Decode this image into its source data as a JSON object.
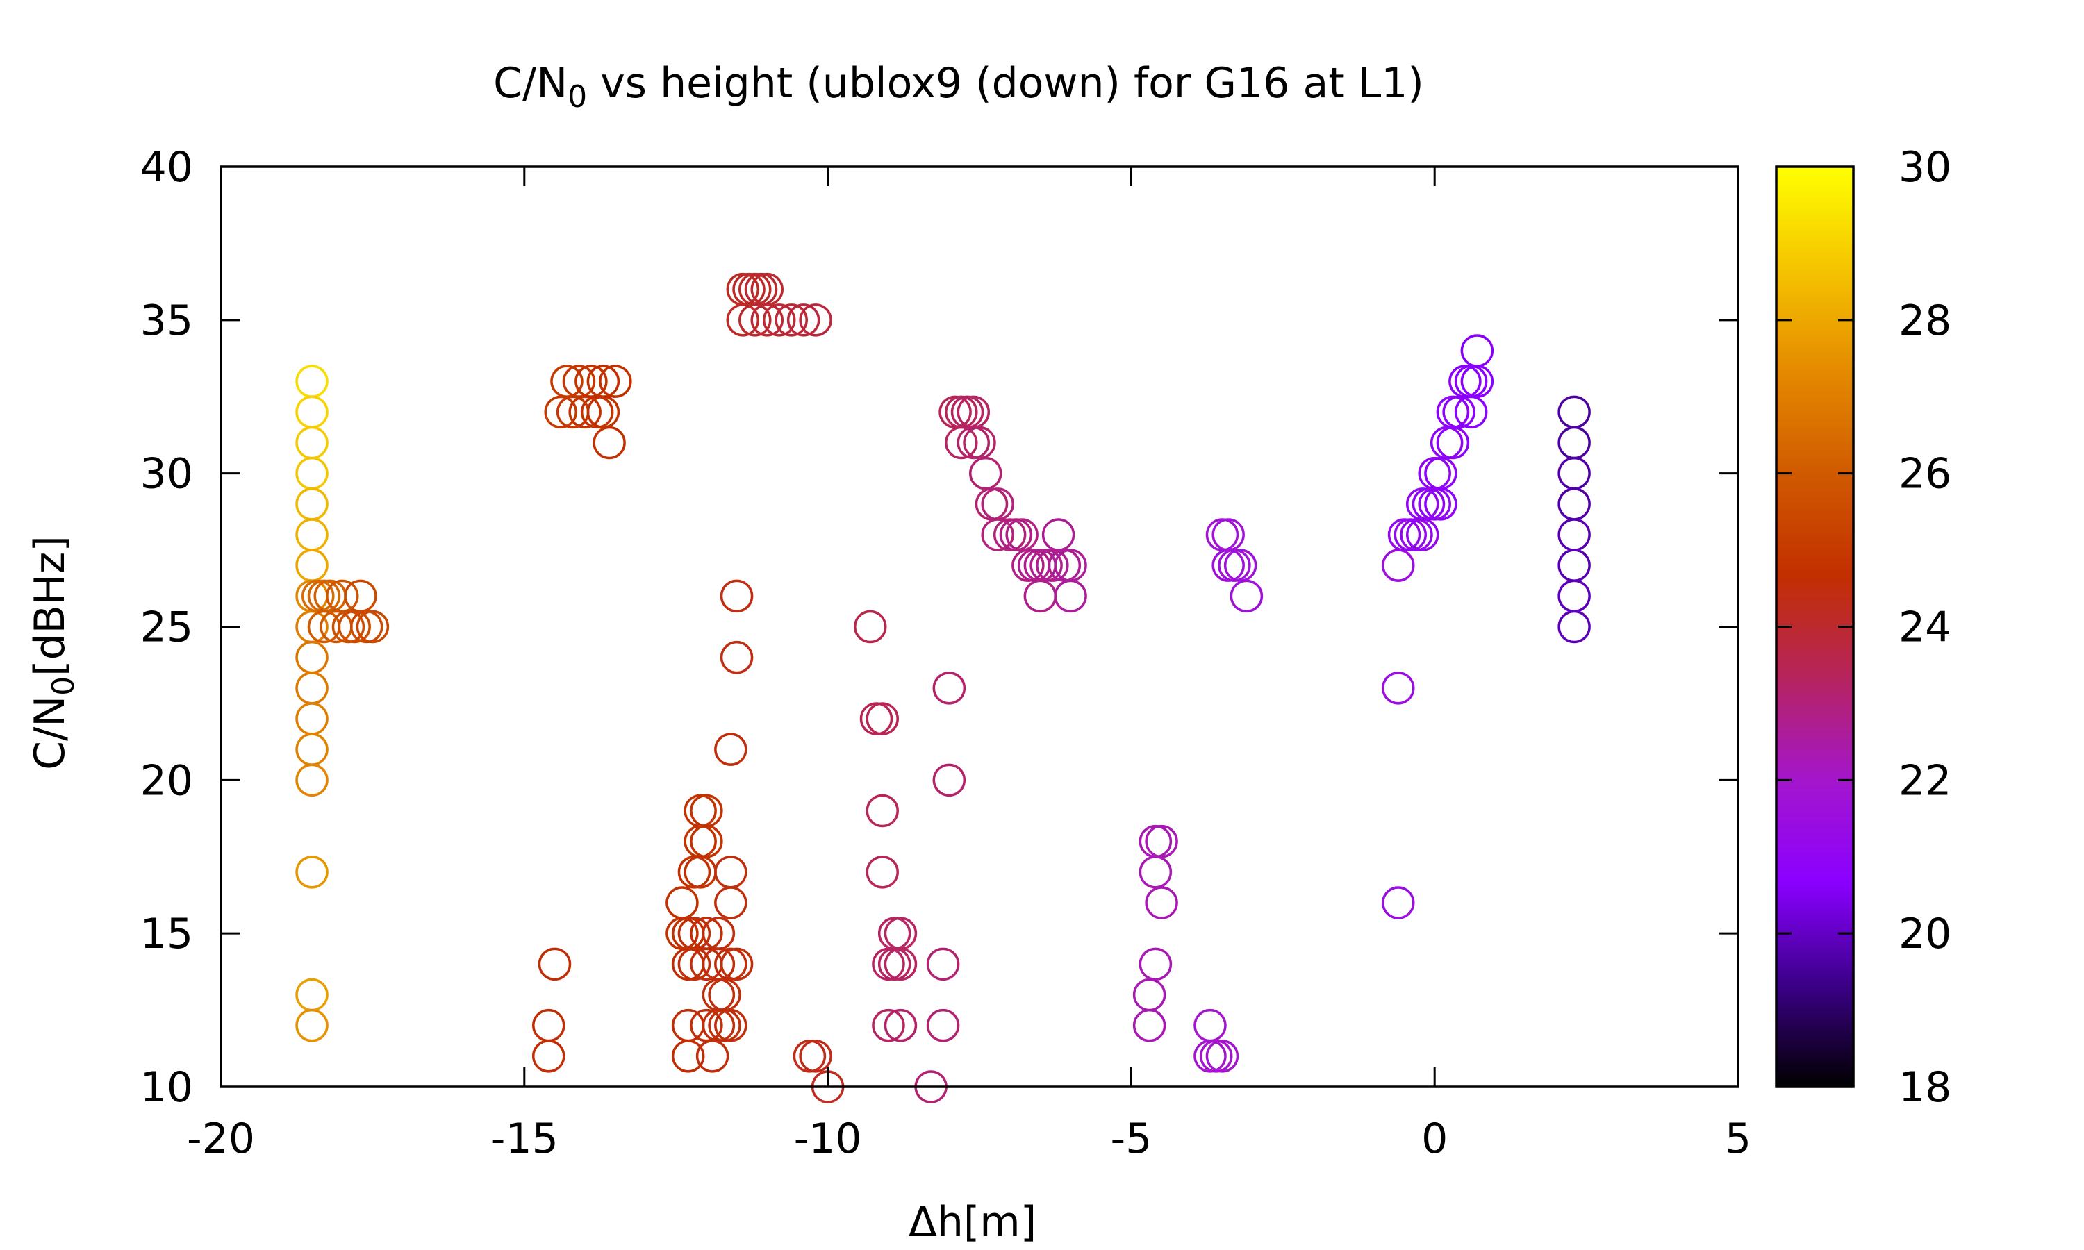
{
  "chart_data": {
    "type": "scatter",
    "title_main": "C/N",
    "title_sub": "0",
    "title_rest": " vs height (ublox9 (down) for G16 at L1)",
    "xlabel": "Δh[m]",
    "ylabel_main": "C/N",
    "ylabel_sub": "0",
    "ylabel_rest": "[dBHz]",
    "xlim": [
      -20,
      5
    ],
    "ylim": [
      10,
      40
    ],
    "xticks": [
      -20,
      -15,
      -10,
      -5,
      0,
      5
    ],
    "yticks": [
      10,
      15,
      20,
      25,
      30,
      35,
      40
    ],
    "colorbar": {
      "range": [
        18,
        30
      ],
      "ticks": [
        18,
        20,
        22,
        24,
        26,
        28,
        30
      ],
      "palette": [
        "#000000",
        "#3b0088",
        "#8a00ff",
        "#a416cc",
        "#b6245e",
        "#c22f00",
        "#d05a00",
        "#e58a00",
        "#f5c400",
        "#ffff00"
      ]
    },
    "marker": "open-circle",
    "grid": false,
    "points": [
      {
        "x": -18.5,
        "y": 33,
        "c": 29.2
      },
      {
        "x": -18.5,
        "y": 32,
        "c": 29.0
      },
      {
        "x": -18.5,
        "y": 31,
        "c": 28.8
      },
      {
        "x": -18.5,
        "y": 30,
        "c": 28.7
      },
      {
        "x": -18.5,
        "y": 29,
        "c": 28.4
      },
      {
        "x": -18.5,
        "y": 28,
        "c": 28.2
      },
      {
        "x": -18.5,
        "y": 27,
        "c": 28.0
      },
      {
        "x": -18.5,
        "y": 26,
        "c": 27.3
      },
      {
        "x": -18.5,
        "y": 25,
        "c": 27.0
      },
      {
        "x": -18.5,
        "y": 24,
        "c": 26.8
      },
      {
        "x": -18.5,
        "y": 23,
        "c": 26.9
      },
      {
        "x": -18.5,
        "y": 22,
        "c": 27.0
      },
      {
        "x": -18.5,
        "y": 21,
        "c": 27.1
      },
      {
        "x": -18.5,
        "y": 20,
        "c": 27.2
      },
      {
        "x": -18.5,
        "y": 17,
        "c": 27.6
      },
      {
        "x": -18.5,
        "y": 13,
        "c": 27.8
      },
      {
        "x": -18.5,
        "y": 12,
        "c": 27.5
      },
      {
        "x": -18.4,
        "y": 26,
        "c": 26.5
      },
      {
        "x": -18.3,
        "y": 26,
        "c": 26.3
      },
      {
        "x": -18.2,
        "y": 26,
        "c": 26.2
      },
      {
        "x": -18.3,
        "y": 25,
        "c": 26.0
      },
      {
        "x": -18.1,
        "y": 25,
        "c": 25.9
      },
      {
        "x": -18.0,
        "y": 26,
        "c": 25.8
      },
      {
        "x": -17.9,
        "y": 25,
        "c": 25.7
      },
      {
        "x": -17.8,
        "y": 25,
        "c": 25.6
      },
      {
        "x": -17.7,
        "y": 26,
        "c": 25.5
      },
      {
        "x": -17.6,
        "y": 25,
        "c": 25.5
      },
      {
        "x": -17.5,
        "y": 25,
        "c": 25.4
      },
      {
        "x": -14.4,
        "y": 32,
        "c": 25.0
      },
      {
        "x": -14.3,
        "y": 33,
        "c": 25.0
      },
      {
        "x": -14.2,
        "y": 32,
        "c": 24.9
      },
      {
        "x": -14.1,
        "y": 33,
        "c": 24.9
      },
      {
        "x": -14.0,
        "y": 32,
        "c": 24.8
      },
      {
        "x": -13.9,
        "y": 33,
        "c": 24.8
      },
      {
        "x": -13.8,
        "y": 32,
        "c": 24.8
      },
      {
        "x": -13.7,
        "y": 33,
        "c": 24.7
      },
      {
        "x": -13.6,
        "y": 31,
        "c": 24.7
      },
      {
        "x": -13.5,
        "y": 33,
        "c": 24.7
      },
      {
        "x": -13.7,
        "y": 32,
        "c": 24.7
      },
      {
        "x": -14.5,
        "y": 14,
        "c": 24.6
      },
      {
        "x": -14.6,
        "y": 12,
        "c": 24.6
      },
      {
        "x": -14.6,
        "y": 11,
        "c": 24.6
      },
      {
        "x": -11.4,
        "y": 36,
        "c": 24.2
      },
      {
        "x": -11.3,
        "y": 36,
        "c": 24.1
      },
      {
        "x": -11.2,
        "y": 36,
        "c": 24.1
      },
      {
        "x": -11.1,
        "y": 36,
        "c": 24.0
      },
      {
        "x": -11.0,
        "y": 36,
        "c": 24.0
      },
      {
        "x": -11.4,
        "y": 35,
        "c": 24.1
      },
      {
        "x": -11.2,
        "y": 35,
        "c": 24.0
      },
      {
        "x": -11.0,
        "y": 35,
        "c": 23.9
      },
      {
        "x": -10.8,
        "y": 35,
        "c": 23.9
      },
      {
        "x": -10.6,
        "y": 35,
        "c": 23.9
      },
      {
        "x": -10.4,
        "y": 35,
        "c": 23.8
      },
      {
        "x": -10.2,
        "y": 35,
        "c": 23.8
      },
      {
        "x": -11.5,
        "y": 26,
        "c": 24.4
      },
      {
        "x": -11.5,
        "y": 24,
        "c": 24.4
      },
      {
        "x": -11.6,
        "y": 21,
        "c": 24.5
      },
      {
        "x": -12.1,
        "y": 19,
        "c": 24.8
      },
      {
        "x": -12.0,
        "y": 19,
        "c": 24.8
      },
      {
        "x": -12.1,
        "y": 18,
        "c": 24.8
      },
      {
        "x": -12.0,
        "y": 18,
        "c": 24.8
      },
      {
        "x": -12.2,
        "y": 17,
        "c": 24.7
      },
      {
        "x": -12.1,
        "y": 17,
        "c": 24.7
      },
      {
        "x": -12.4,
        "y": 16,
        "c": 24.7
      },
      {
        "x": -12.4,
        "y": 15,
        "c": 24.7
      },
      {
        "x": -12.3,
        "y": 15,
        "c": 24.7
      },
      {
        "x": -12.2,
        "y": 15,
        "c": 24.6
      },
      {
        "x": -12.0,
        "y": 15,
        "c": 24.6
      },
      {
        "x": -11.8,
        "y": 15,
        "c": 24.5
      },
      {
        "x": -12.3,
        "y": 14,
        "c": 24.6
      },
      {
        "x": -12.2,
        "y": 14,
        "c": 24.6
      },
      {
        "x": -12.0,
        "y": 14,
        "c": 24.5
      },
      {
        "x": -11.8,
        "y": 14,
        "c": 24.5
      },
      {
        "x": -11.6,
        "y": 14,
        "c": 24.5
      },
      {
        "x": -11.5,
        "y": 14,
        "c": 24.5
      },
      {
        "x": -11.6,
        "y": 17,
        "c": 24.5
      },
      {
        "x": -11.6,
        "y": 16,
        "c": 24.5
      },
      {
        "x": -11.8,
        "y": 13,
        "c": 24.5
      },
      {
        "x": -11.7,
        "y": 13,
        "c": 24.5
      },
      {
        "x": -12.3,
        "y": 12,
        "c": 24.6
      },
      {
        "x": -12.0,
        "y": 12,
        "c": 24.5
      },
      {
        "x": -11.8,
        "y": 12,
        "c": 24.5
      },
      {
        "x": -11.7,
        "y": 12,
        "c": 24.5
      },
      {
        "x": -11.6,
        "y": 12,
        "c": 24.5
      },
      {
        "x": -12.3,
        "y": 11,
        "c": 24.6
      },
      {
        "x": -11.9,
        "y": 11,
        "c": 24.5
      },
      {
        "x": -10.3,
        "y": 11,
        "c": 24.3
      },
      {
        "x": -10.2,
        "y": 11,
        "c": 24.3
      },
      {
        "x": -10.0,
        "y": 10,
        "c": 24.2
      },
      {
        "x": -9.3,
        "y": 25,
        "c": 23.6
      },
      {
        "x": -9.2,
        "y": 22,
        "c": 23.5
      },
      {
        "x": -9.1,
        "y": 22,
        "c": 23.5
      },
      {
        "x": -9.1,
        "y": 19,
        "c": 23.4
      },
      {
        "x": -9.1,
        "y": 17,
        "c": 23.4
      },
      {
        "x": -8.9,
        "y": 15,
        "c": 23.3
      },
      {
        "x": -8.8,
        "y": 15,
        "c": 23.3
      },
      {
        "x": -9.0,
        "y": 14,
        "c": 23.3
      },
      {
        "x": -8.9,
        "y": 14,
        "c": 23.3
      },
      {
        "x": -8.8,
        "y": 14,
        "c": 23.3
      },
      {
        "x": -9.0,
        "y": 12,
        "c": 23.3
      },
      {
        "x": -8.8,
        "y": 12,
        "c": 23.2
      },
      {
        "x": -8.3,
        "y": 10,
        "c": 23.1
      },
      {
        "x": -8.0,
        "y": 23,
        "c": 23.2
      },
      {
        "x": -8.0,
        "y": 20,
        "c": 23.2
      },
      {
        "x": -8.1,
        "y": 14,
        "c": 23.1
      },
      {
        "x": -8.1,
        "y": 12,
        "c": 23.1
      },
      {
        "x": -7.9,
        "y": 32,
        "c": 23.4
      },
      {
        "x": -7.8,
        "y": 32,
        "c": 23.4
      },
      {
        "x": -7.7,
        "y": 32,
        "c": 23.3
      },
      {
        "x": -7.6,
        "y": 32,
        "c": 23.3
      },
      {
        "x": -7.8,
        "y": 31,
        "c": 23.3
      },
      {
        "x": -7.6,
        "y": 31,
        "c": 23.2
      },
      {
        "x": -7.5,
        "y": 31,
        "c": 23.2
      },
      {
        "x": -7.4,
        "y": 30,
        "c": 23.1
      },
      {
        "x": -7.3,
        "y": 29,
        "c": 23.1
      },
      {
        "x": -7.2,
        "y": 29,
        "c": 23.0
      },
      {
        "x": -7.2,
        "y": 28,
        "c": 23.0
      },
      {
        "x": -7.0,
        "y": 28,
        "c": 23.0
      },
      {
        "x": -6.9,
        "y": 28,
        "c": 22.9
      },
      {
        "x": -6.8,
        "y": 28,
        "c": 22.9
      },
      {
        "x": -6.7,
        "y": 27,
        "c": 22.9
      },
      {
        "x": -6.6,
        "y": 27,
        "c": 22.8
      },
      {
        "x": -6.5,
        "y": 27,
        "c": 22.8
      },
      {
        "x": -6.4,
        "y": 27,
        "c": 22.8
      },
      {
        "x": -6.5,
        "y": 26,
        "c": 22.8
      },
      {
        "x": -6.3,
        "y": 27,
        "c": 22.7
      },
      {
        "x": -6.2,
        "y": 28,
        "c": 22.7
      },
      {
        "x": -6.1,
        "y": 27,
        "c": 22.7
      },
      {
        "x": -6.0,
        "y": 27,
        "c": 22.6
      },
      {
        "x": -6.0,
        "y": 26,
        "c": 22.6
      },
      {
        "x": -4.6,
        "y": 18,
        "c": 22.3
      },
      {
        "x": -4.5,
        "y": 18,
        "c": 22.3
      },
      {
        "x": -4.6,
        "y": 17,
        "c": 22.3
      },
      {
        "x": -4.5,
        "y": 16,
        "c": 22.3
      },
      {
        "x": -4.6,
        "y": 14,
        "c": 22.3
      },
      {
        "x": -4.7,
        "y": 13,
        "c": 22.3
      },
      {
        "x": -4.7,
        "y": 12,
        "c": 22.3
      },
      {
        "x": -3.7,
        "y": 12,
        "c": 22.0
      },
      {
        "x": -3.7,
        "y": 11,
        "c": 22.0
      },
      {
        "x": -3.6,
        "y": 11,
        "c": 22.0
      },
      {
        "x": -3.5,
        "y": 11,
        "c": 22.0
      },
      {
        "x": -3.5,
        "y": 28,
        "c": 21.8
      },
      {
        "x": -3.4,
        "y": 28,
        "c": 21.8
      },
      {
        "x": -3.4,
        "y": 27,
        "c": 21.7
      },
      {
        "x": -3.3,
        "y": 27,
        "c": 21.7
      },
      {
        "x": -3.2,
        "y": 27,
        "c": 21.7
      },
      {
        "x": -3.1,
        "y": 26,
        "c": 21.7
      },
      {
        "x": -0.6,
        "y": 27,
        "c": 21.5
      },
      {
        "x": -0.6,
        "y": 23,
        "c": 21.5
      },
      {
        "x": -0.6,
        "y": 16,
        "c": 21.5
      },
      {
        "x": -0.5,
        "y": 28,
        "c": 21.2
      },
      {
        "x": -0.4,
        "y": 28,
        "c": 21.2
      },
      {
        "x": -0.3,
        "y": 28,
        "c": 21.1
      },
      {
        "x": -0.2,
        "y": 29,
        "c": 21.1
      },
      {
        "x": -0.1,
        "y": 29,
        "c": 21.0
      },
      {
        "x": -0.2,
        "y": 28,
        "c": 21.1
      },
      {
        "x": 0.0,
        "y": 29,
        "c": 21.0
      },
      {
        "x": 0.0,
        "y": 30,
        "c": 21.0
      },
      {
        "x": 0.1,
        "y": 30,
        "c": 20.9
      },
      {
        "x": 0.1,
        "y": 29,
        "c": 20.9
      },
      {
        "x": 0.2,
        "y": 31,
        "c": 20.9
      },
      {
        "x": 0.3,
        "y": 31,
        "c": 20.8
      },
      {
        "x": 0.3,
        "y": 32,
        "c": 20.8
      },
      {
        "x": 0.4,
        "y": 32,
        "c": 20.8
      },
      {
        "x": 0.5,
        "y": 33,
        "c": 20.7
      },
      {
        "x": 0.6,
        "y": 33,
        "c": 20.7
      },
      {
        "x": 0.7,
        "y": 33,
        "c": 20.7
      },
      {
        "x": 0.6,
        "y": 32,
        "c": 20.7
      },
      {
        "x": 0.7,
        "y": 34,
        "c": 20.6
      },
      {
        "x": 2.3,
        "y": 32,
        "c": 19.6
      },
      {
        "x": 2.3,
        "y": 31,
        "c": 19.6
      },
      {
        "x": 2.3,
        "y": 30,
        "c": 19.7
      },
      {
        "x": 2.3,
        "y": 29,
        "c": 19.7
      },
      {
        "x": 2.3,
        "y": 28,
        "c": 19.8
      },
      {
        "x": 2.3,
        "y": 27,
        "c": 19.8
      },
      {
        "x": 2.3,
        "y": 26,
        "c": 19.9
      },
      {
        "x": 2.3,
        "y": 25,
        "c": 19.9
      }
    ]
  }
}
